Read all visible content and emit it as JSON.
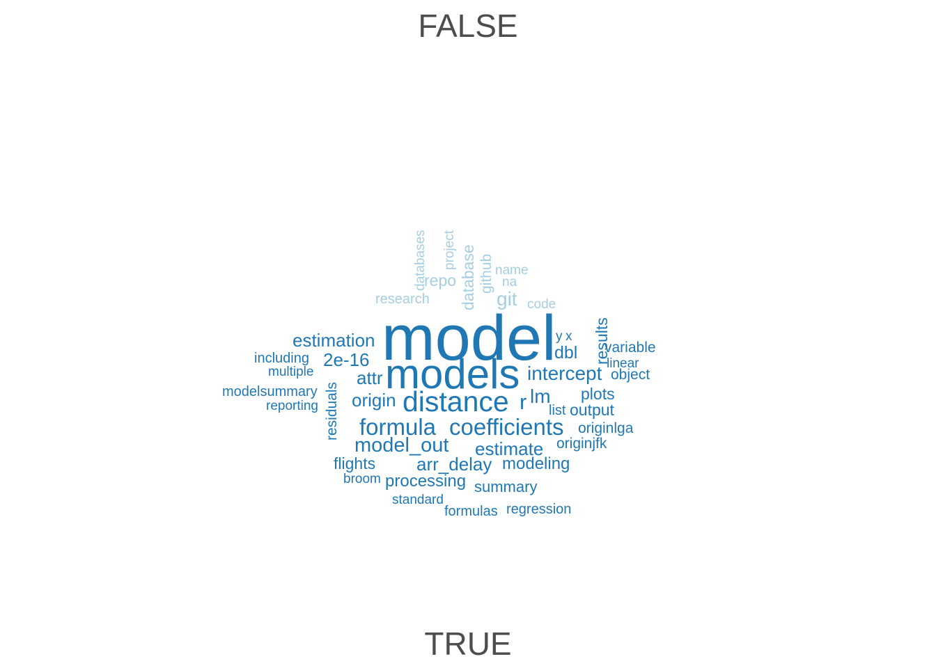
{
  "chart_data": {
    "type": "wordcloud",
    "title": "",
    "legend": "none",
    "colors": {
      "FALSE": "#a6cee3",
      "TRUE": "#1f78b4",
      "group_label": "#4d4d4d"
    },
    "groups": [
      {
        "name": "FALSE",
        "label": "FALSE",
        "position": "top",
        "words": [
          "databases",
          "project",
          "database",
          "github",
          "repo",
          "name",
          "na",
          "git",
          "research",
          "code"
        ]
      },
      {
        "name": "TRUE",
        "label": "TRUE",
        "position": "bottom",
        "words": [
          "model",
          "models",
          "distance",
          "formula",
          "coefficients",
          "intercept",
          "estimation",
          "2e-16",
          "attr",
          "origin",
          "r",
          "lm",
          "dbl",
          "results",
          "y",
          "x",
          "variable",
          "linear",
          "object",
          "plots",
          "output",
          "list",
          "originlga",
          "originjfk",
          "model_out",
          "estimate",
          "arr_delay",
          "modeling",
          "flights",
          "broom",
          "processing",
          "summary",
          "standard",
          "formulas",
          "regression",
          "residuals",
          "including",
          "multiple",
          "modelsummary",
          "reporting"
        ]
      }
    ],
    "word_weights": {
      "model": 100,
      "models": 70,
      "distance": 52,
      "coefficients": 42,
      "formula": 42,
      "intercept": 38,
      "estimation": 36,
      "r": 40,
      "lm": 36,
      "2e-16": 34,
      "attr": 32,
      "origin": 33,
      "model_out": 38,
      "estimate": 34,
      "arr_delay": 34,
      "modeling": 32,
      "flights": 30,
      "processing": 32,
      "summary": 28,
      "dbl": 32,
      "results": 29,
      "plots": 28,
      "output": 29,
      "variable": 27,
      "object": 27,
      "linear": 24,
      "residuals": 28,
      "y": 25,
      "x": 25,
      "list": 25,
      "originlga": 26,
      "originjfk": 26,
      "broom": 24,
      "standard": 24,
      "formulas": 25,
      "regression": 25,
      "including": 25,
      "multiple": 24,
      "modelsummary": 25,
      "reporting": 24,
      "git": 34,
      "github": 27,
      "database": 27,
      "repo": 28,
      "databases": 23,
      "project": 23,
      "name": 22,
      "na": 22,
      "research": 23,
      "code": 23
    }
  }
}
